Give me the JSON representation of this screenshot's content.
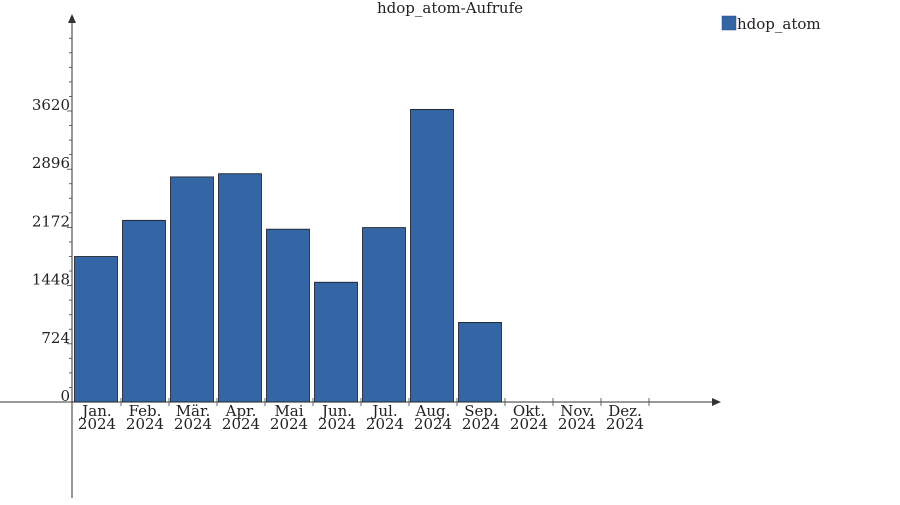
{
  "chart_data": {
    "type": "bar",
    "title": "hdop_atom-Aufrufe",
    "categories": [
      [
        "Jan.",
        "2024"
      ],
      [
        "Feb.",
        "2024"
      ],
      [
        "Mär.",
        "2024"
      ],
      [
        "Apr.",
        "2024"
      ],
      [
        "Mai",
        "2024"
      ],
      [
        "Jun.",
        "2024"
      ],
      [
        "Jul.",
        "2024"
      ],
      [
        "Aug.",
        "2024"
      ],
      [
        "Sep.",
        "2024"
      ],
      [
        "Okt.",
        "2024"
      ],
      [
        "Nov.",
        "2024"
      ],
      [
        "Dez.",
        "2024"
      ]
    ],
    "series": [
      {
        "name": "hdop_atom",
        "color": "#3465a4",
        "values": [
          1810,
          2260,
          2800,
          2840,
          2150,
          1490,
          2170,
          3640,
          990,
          0,
          0,
          0
        ]
      }
    ],
    "y_ticks": [
      0,
      724,
      1448,
      2172,
      2896,
      3620
    ],
    "y_minor_step": 181,
    "ylim": [
      0,
      4800
    ],
    "grid": false,
    "legend_position": "top-right"
  }
}
